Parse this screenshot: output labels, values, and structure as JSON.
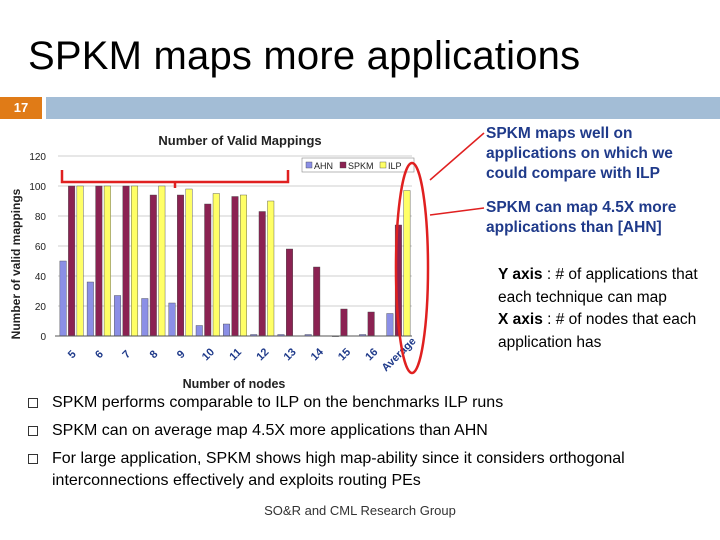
{
  "slide": {
    "title": "SPKM maps more applications",
    "number": "17",
    "callout_1": "SPKM maps well on applications on which we could compare with ILP",
    "callout_2": "SPKM can map 4.5X more applications than [AHN]",
    "axes_note": {
      "y_bold": "Y axis",
      "y_text": " : # of applications that each technique can map",
      "x_bold": "X axis",
      "x_text": " : # of nodes that each application has"
    },
    "bullets": [
      "SPKM performs comparable to ILP on the benchmarks ILP runs",
      "SPKM can on average map 4.5X more applications than AHN",
      "For large application, SPKM shows high map-ability since it considers orthogonal interconnections effectively and exploits routing PEs"
    ],
    "footer": "SO&R and CML Research Group"
  },
  "colors": {
    "accent_orange": "#e07b17",
    "title_bar": "#a3bdd6",
    "callout_text": "#1f3a8a",
    "highlight_red": "#e02020"
  },
  "chart_data": {
    "type": "bar",
    "title": "Number of Valid Mappings",
    "xlabel": "Number of nodes",
    "ylabel": "Number of valid mappings",
    "ylim": [
      0,
      120
    ],
    "yticks": [
      0,
      20,
      40,
      60,
      80,
      100,
      120
    ],
    "categories": [
      "5",
      "6",
      "7",
      "8",
      "9",
      "10",
      "11",
      "12",
      "13",
      "14",
      "15",
      "16",
      "Average"
    ],
    "legend_position": "top-right",
    "series": [
      {
        "name": "AHN",
        "color": "#8b8fe6",
        "values": [
          50,
          36,
          27,
          25,
          22,
          7,
          8,
          1,
          1,
          1,
          0,
          1,
          15
        ]
      },
      {
        "name": "SPKM",
        "color": "#8b2252",
        "values": [
          100,
          100,
          100,
          94,
          94,
          88,
          93,
          83,
          58,
          46,
          18,
          16,
          74
        ]
      },
      {
        "name": "ILP",
        "color": "#ffff66",
        "values": [
          100,
          100,
          100,
          100,
          98,
          95,
          94,
          90,
          null,
          null,
          null,
          null,
          97
        ]
      }
    ]
  }
}
